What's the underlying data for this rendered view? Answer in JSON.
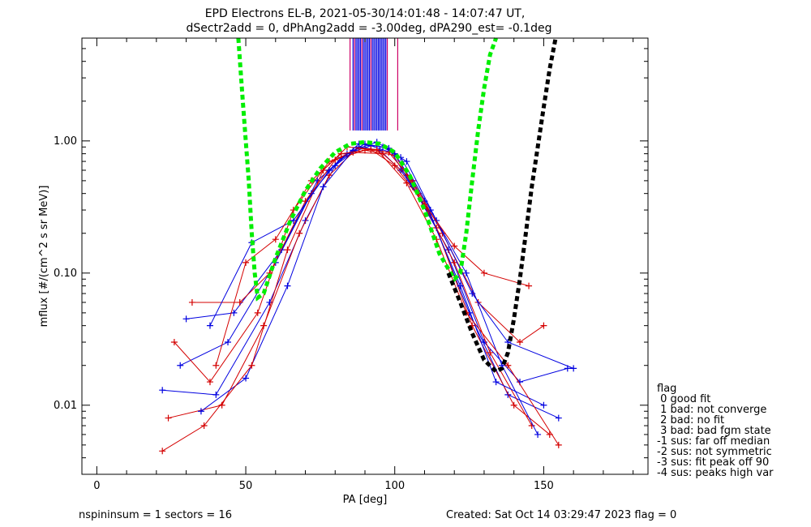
{
  "chart_data": {
    "type": "scatter",
    "title": "EPD Electrons EL-B, 2021-05-30/14:01:48 - 14:07:47 UT,",
    "subtitle": "dSectr2add = 0, dPhAng2add = -3.00deg, dPA290_est=  -0.1deg",
    "xlabel": "PA [deg]",
    "ylabel": "mflux [#/(cm^2 s sr MeV)]",
    "xlim": [
      -5,
      185
    ],
    "ylim": [
      0.003,
      6
    ],
    "y_scale": "log",
    "x_ticks": [
      {
        "value": 0,
        "label": "0"
      },
      {
        "value": 50,
        "label": "50"
      },
      {
        "value": 100,
        "label": "100"
      },
      {
        "value": 150,
        "label": "150"
      }
    ],
    "y_ticks": [
      {
        "value": 0.01,
        "label": "0.01"
      },
      {
        "value": 0.1,
        "label": "0.10"
      },
      {
        "value": 1.0,
        "label": "1.00"
      }
    ],
    "colors": {
      "red": "#d40000",
      "blue": "#0000e0",
      "green": "#00ee00",
      "black": "#000000",
      "magenta": "#cc0066"
    },
    "series": [
      {
        "color": "blue",
        "x": [
          22,
          40,
          58,
          70,
          80,
          88,
          95,
          102,
          112,
          125,
          138,
          155
        ],
        "y": [
          0.013,
          0.012,
          0.06,
          0.25,
          0.65,
          0.9,
          0.85,
          0.6,
          0.28,
          0.05,
          0.012,
          0.008
        ]
      },
      {
        "color": "red",
        "x": [
          24,
          42,
          56,
          68,
          78,
          86,
          96,
          104,
          114,
          126,
          140,
          152
        ],
        "y": [
          0.008,
          0.01,
          0.04,
          0.2,
          0.55,
          0.82,
          0.8,
          0.55,
          0.22,
          0.04,
          0.01,
          0.006
        ]
      },
      {
        "color": "blue",
        "x": [
          28,
          44,
          60,
          72,
          82,
          90,
          98,
          106,
          118,
          130,
          142,
          158
        ],
        "y": [
          0.02,
          0.03,
          0.12,
          0.4,
          0.75,
          0.95,
          0.88,
          0.45,
          0.15,
          0.03,
          0.015,
          0.019
        ]
      },
      {
        "color": "red",
        "x": [
          26,
          38,
          54,
          66,
          78,
          90,
          100,
          108,
          120,
          132,
          146
        ],
        "y": [
          0.03,
          0.015,
          0.05,
          0.3,
          0.7,
          0.85,
          0.78,
          0.4,
          0.12,
          0.025,
          0.007
        ]
      },
      {
        "color": "blue",
        "x": [
          30,
          46,
          62,
          74,
          84,
          92,
          100,
          110,
          122,
          134,
          150
        ],
        "y": [
          0.045,
          0.05,
          0.15,
          0.5,
          0.8,
          0.92,
          0.8,
          0.35,
          0.08,
          0.015,
          0.01
        ]
      },
      {
        "color": "red",
        "x": [
          32,
          48,
          58,
          70,
          80,
          88,
          98,
          106,
          116,
          128,
          142,
          150
        ],
        "y": [
          0.06,
          0.06,
          0.1,
          0.35,
          0.72,
          0.88,
          0.82,
          0.5,
          0.2,
          0.06,
          0.03,
          0.04
        ]
      },
      {
        "color": "blue",
        "x": [
          35,
          50,
          64,
          76,
          86,
          94,
          102,
          112,
          124,
          136,
          148
        ],
        "y": [
          0.009,
          0.016,
          0.08,
          0.45,
          0.85,
          0.98,
          0.75,
          0.3,
          0.1,
          0.02,
          0.006
        ]
      },
      {
        "color": "red",
        "x": [
          22,
          36,
          52,
          64,
          76,
          84,
          94,
          104,
          114,
          124,
          138,
          155
        ],
        "y": [
          0.0045,
          0.007,
          0.02,
          0.15,
          0.6,
          0.9,
          0.86,
          0.48,
          0.18,
          0.05,
          0.02,
          0.005
        ]
      },
      {
        "color": "blue",
        "x": [
          38,
          52,
          66,
          78,
          88,
          96,
          104,
          114,
          126,
          138,
          160
        ],
        "y": [
          0.04,
          0.17,
          0.25,
          0.6,
          0.95,
          0.9,
          0.7,
          0.25,
          0.07,
          0.03,
          0.019
        ]
      },
      {
        "color": "red",
        "x": [
          40,
          50,
          60,
          72,
          82,
          92,
          100,
          110,
          120,
          130,
          145
        ],
        "y": [
          0.02,
          0.12,
          0.18,
          0.5,
          0.8,
          0.86,
          0.65,
          0.33,
          0.16,
          0.1,
          0.08
        ]
      }
    ],
    "fit_curves": [
      {
        "color": "green",
        "x": [
          47.5,
          49,
          50,
          51,
          52,
          53,
          54,
          56,
          60,
          65,
          70,
          75,
          80,
          85,
          90,
          95,
          100,
          105,
          110,
          115,
          120,
          122,
          124,
          126,
          128,
          130,
          132,
          134
        ],
        "y": [
          6,
          2.0,
          1.0,
          0.5,
          0.2,
          0.1,
          0.065,
          0.07,
          0.13,
          0.25,
          0.42,
          0.62,
          0.82,
          0.95,
          0.98,
          0.95,
          0.82,
          0.55,
          0.3,
          0.14,
          0.09,
          0.1,
          0.2,
          0.5,
          1.2,
          2.5,
          4.5,
          6
        ]
      },
      {
        "color": "black",
        "x": [
          118,
          122,
          126,
          130,
          134,
          136,
          138,
          140,
          142,
          144,
          146,
          148,
          150,
          152,
          154
        ],
        "y": [
          0.1,
          0.06,
          0.035,
          0.022,
          0.018,
          0.019,
          0.025,
          0.045,
          0.09,
          0.2,
          0.45,
          0.9,
          1.8,
          3.5,
          6
        ]
      }
    ],
    "vertical_marks": [
      {
        "color": "magenta",
        "x": [
          85,
          86.5,
          89,
          92,
          97.5,
          101
        ]
      },
      {
        "color": "blue",
        "x": [
          86,
          87,
          87.5,
          88,
          88.5,
          89.5,
          90,
          90.5,
          91,
          91.5,
          92.5,
          93,
          93.5,
          94,
          94.5,
          95,
          95.5,
          96,
          96.5,
          97
        ]
      }
    ],
    "legend": {
      "title": "flag",
      "position": "right",
      "items": [
        " 0 good fit",
        " 1 bad: not converge",
        " 2 bad: no fit",
        " 3 bad: bad fgm state",
        "-1 sus: far off median",
        "-2 sus: not symmetric",
        "-3 sus: fit peak off 90",
        "-4 sus: peaks high var"
      ]
    },
    "grid": false
  },
  "footer": {
    "left": "nspininsum =  1  sectors = 16",
    "right": "Created: Sat Oct 14 03:29:47 2023   flag = 0"
  }
}
